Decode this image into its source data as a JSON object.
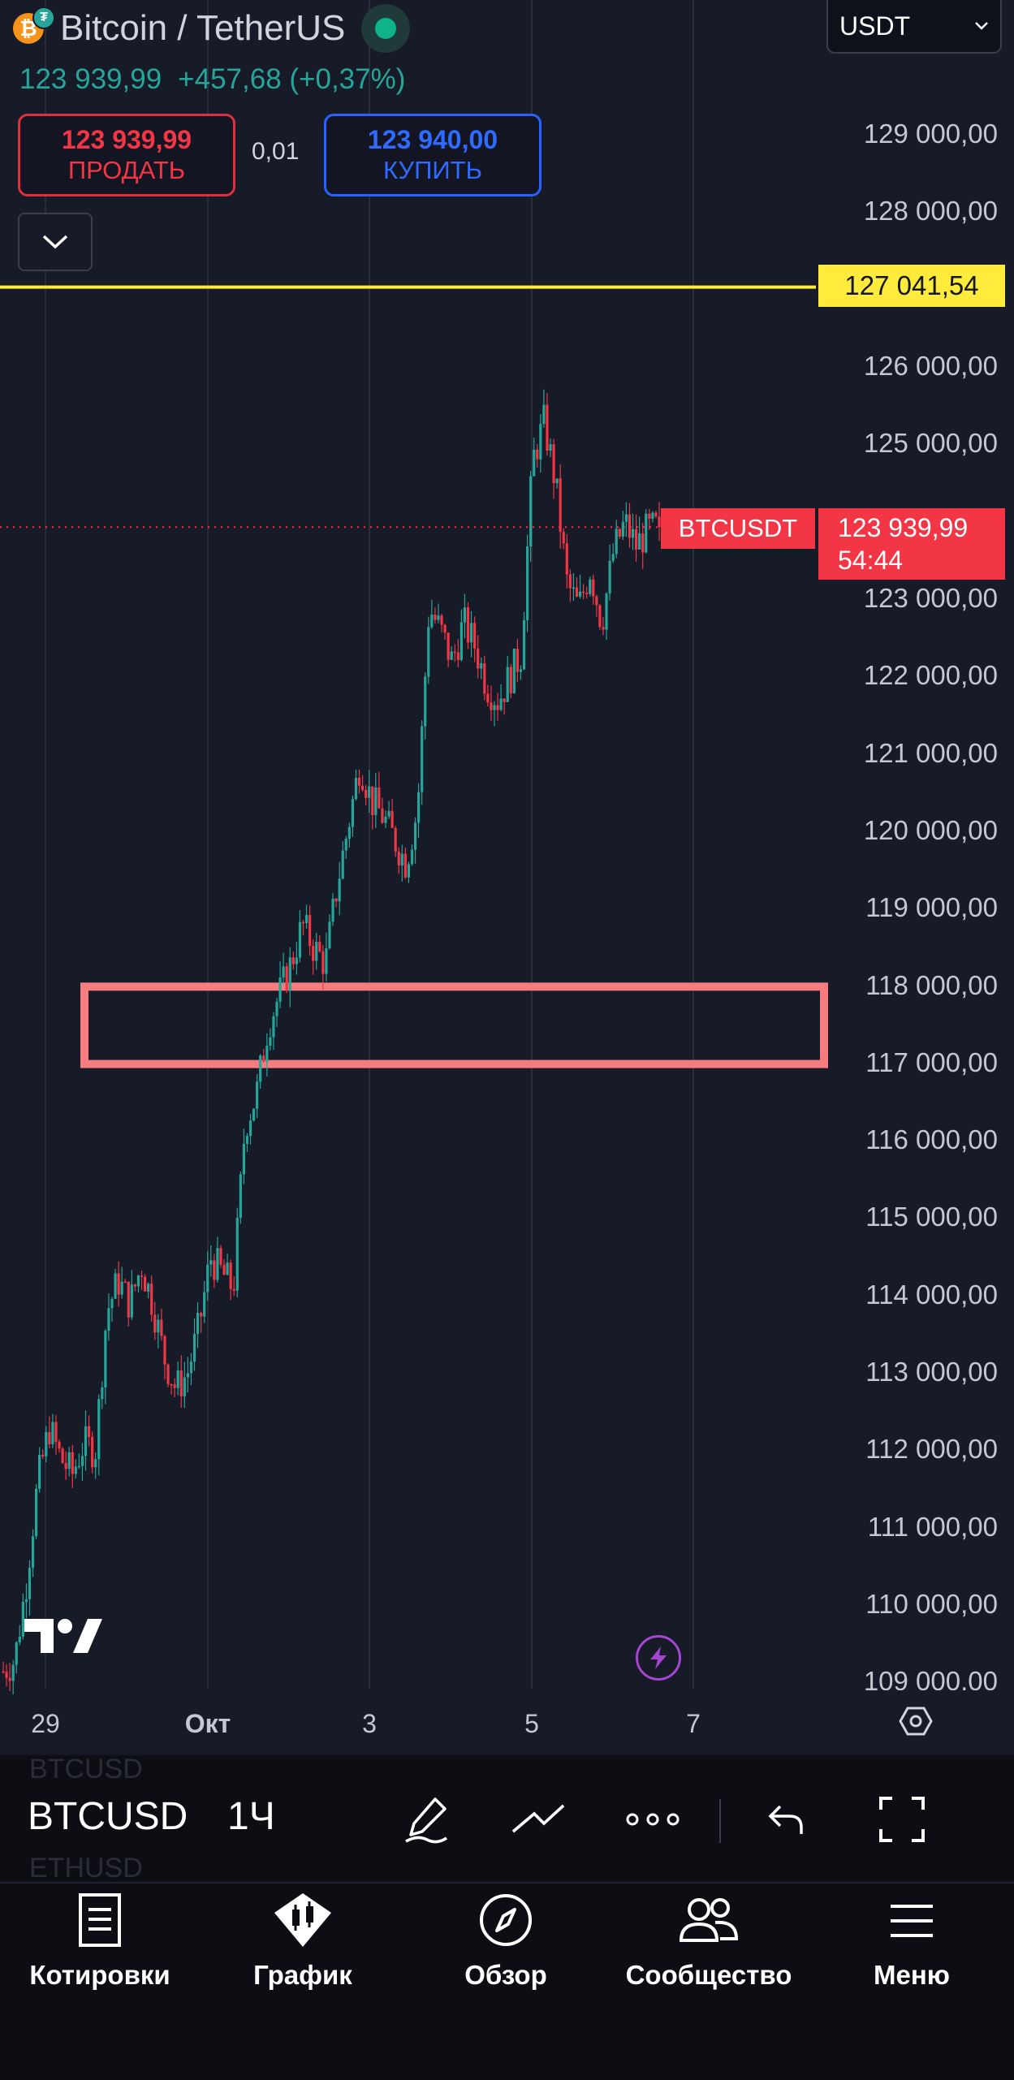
{
  "header": {
    "coin_symbol": "₿",
    "title": "Bitcoin / TetherUS",
    "last_price": "123 939,99",
    "change": "+457,68 (+0,37%)",
    "currency": "USDT"
  },
  "trade": {
    "sell_price": "123 939,99",
    "sell_label": "ПРОДАТЬ",
    "quantity": "0,01",
    "buy_price": "123 940,00",
    "buy_label": "КУПИТЬ"
  },
  "price_axis": [
    "129 000,00",
    "128 000,00",
    "127 041,54",
    "126 000,00",
    "125 000,00",
    "123 939,99",
    "123 000,00",
    "122 000,00",
    "121 000,00",
    "120 000,00",
    "119 000,00",
    "118 000,00",
    "117 000,00",
    "116 000,00",
    "115 000,00",
    "114 000,00",
    "113 000,00",
    "112 000,00",
    "111 000,00",
    "110 000,00",
    "109 000,00"
  ],
  "axis_ticks": [
    "129 000,00",
    "128 000,00",
    "126 000,00",
    "125 000,00",
    "123 000,00",
    "122 000,00",
    "121 000,00",
    "120 000,00",
    "119 000,00",
    "118 000,00",
    "117 000,00",
    "116 000,00",
    "115 000,00",
    "114 000,00",
    "113 000,00",
    "112 000,00",
    "111 000,00",
    "110 000,00",
    "109 000,00"
  ],
  "time_axis": [
    "29",
    "Окт",
    "3",
    "5",
    "7"
  ],
  "alert_line_price": "127 041,54",
  "last_price_tag": {
    "symbol": "BTCUSDT",
    "price": "123 939,99",
    "countdown": "54:44"
  },
  "toolbar": {
    "symbol": "BTCUSD",
    "interval": "1Ч",
    "ghost_top": "BTCUSD",
    "ghost_bottom": "ETHUSD"
  },
  "nav": [
    {
      "label": "Котировки",
      "icon": "quotes-icon"
    },
    {
      "label": "График",
      "icon": "chart-icon"
    },
    {
      "label": "Обзор",
      "icon": "compass-icon"
    },
    {
      "label": "Сообщество",
      "icon": "community-icon"
    },
    {
      "label": "Меню",
      "icon": "menu-icon"
    }
  ],
  "chart_data": {
    "type": "candlestick",
    "symbol": "BTCUSDT",
    "interval": "1Ч",
    "ylim": [
      109000,
      129000
    ],
    "x_ticks": [
      "29",
      "Окт",
      "3",
      "5",
      "7"
    ],
    "close_path": [
      109150,
      109300,
      110300,
      111600,
      112300,
      111900,
      111700,
      112100,
      112000,
      113800,
      114200,
      113900,
      114400,
      113900,
      113200,
      112800,
      113000,
      113600,
      114500,
      114300,
      114100,
      116200,
      116600,
      117500,
      117900,
      118300,
      118800,
      118500,
      118300,
      119300,
      120100,
      120900,
      120400,
      120200,
      119900,
      119600,
      120300,
      122900,
      122600,
      122200,
      122700,
      122400,
      121900,
      121700,
      122000,
      122300,
      124800,
      125300,
      124500,
      123200,
      122900,
      123400,
      122700,
      123600,
      124000,
      123700,
      123900,
      123940
    ],
    "alert_level": 127041.54,
    "last_price": 123939.99,
    "zone": {
      "low": 117000,
      "high": 118000
    },
    "colors": {
      "up": "#26a69a",
      "down": "#f23645",
      "alert": "#ffeb3b",
      "zone": "#f77c80"
    }
  }
}
